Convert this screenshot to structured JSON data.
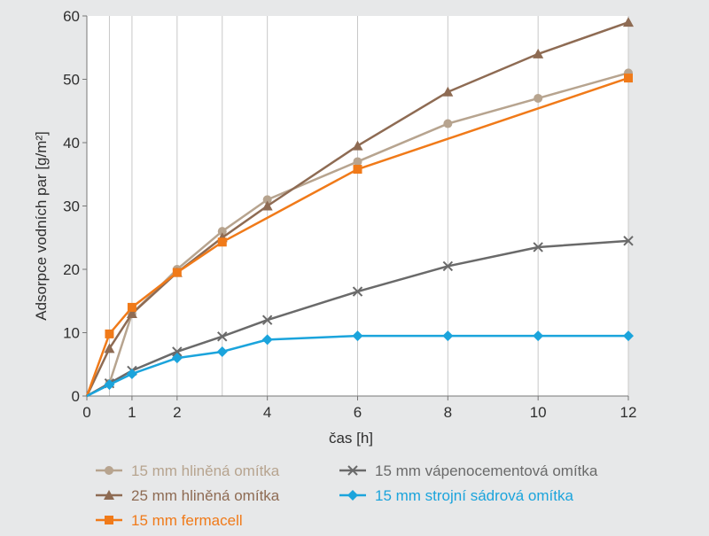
{
  "chart_data": {
    "type": "line",
    "title": "",
    "xlabel": "čas [h]",
    "ylabel": "Adsorpce vodních par [g/m²]",
    "xlim": [
      0,
      12
    ],
    "ylim": [
      0,
      60
    ],
    "x_ticks": [
      0,
      1,
      2,
      4,
      6,
      8,
      10,
      12
    ],
    "x_gridlines": [
      0.5,
      1,
      2,
      3,
      4,
      6,
      8,
      10,
      12
    ],
    "y_ticks": [
      0,
      10,
      20,
      30,
      40,
      50,
      60
    ],
    "grid": "vertical",
    "legend_position": "bottom",
    "series": [
      {
        "name": "15 mm hliněná omítka",
        "color": "#b7a48f",
        "marker": "circle",
        "points": [
          [
            0,
            0
          ],
          [
            0.5,
            2
          ],
          [
            1,
            13
          ],
          [
            2,
            20
          ],
          [
            3,
            26
          ],
          [
            4,
            31
          ],
          [
            6,
            37
          ],
          [
            8,
            43
          ],
          [
            10,
            47
          ],
          [
            12,
            51
          ]
        ]
      },
      {
        "name": "25 mm hliněná omítka",
        "color": "#8e6b53",
        "marker": "triangle",
        "points": [
          [
            0,
            0
          ],
          [
            0.5,
            7.5
          ],
          [
            1,
            13
          ],
          [
            2,
            19.5
          ],
          [
            3,
            25
          ],
          [
            4,
            30
          ],
          [
            6,
            39.5
          ],
          [
            8,
            48
          ],
          [
            10,
            54
          ],
          [
            12,
            59
          ]
        ]
      },
      {
        "name": "15 mm fermacell",
        "color": "#f07a19",
        "marker": "square",
        "points": [
          [
            0,
            0
          ],
          [
            0.5,
            9.8
          ],
          [
            1,
            14
          ],
          [
            2,
            19.5
          ],
          [
            3,
            24.3
          ],
          [
            6,
            35.8
          ],
          [
            12,
            50.2
          ]
        ]
      },
      {
        "name": "15 mm vápenocementová omítka",
        "color": "#6a6a6a",
        "marker": "x",
        "points": [
          [
            0,
            0
          ],
          [
            0.5,
            2
          ],
          [
            1,
            4
          ],
          [
            2,
            7
          ],
          [
            3,
            9.4
          ],
          [
            4,
            12
          ],
          [
            6,
            16.5
          ],
          [
            8,
            20.5
          ],
          [
            10,
            23.5
          ],
          [
            12,
            24.5
          ]
        ]
      },
      {
        "name": "15 mm strojní sádrová omítka",
        "color": "#1ba4dc",
        "marker": "diamond",
        "points": [
          [
            0,
            0
          ],
          [
            0.5,
            1.8
          ],
          [
            1,
            3.5
          ],
          [
            2,
            6
          ],
          [
            3,
            7
          ],
          [
            4,
            8.9
          ],
          [
            6,
            9.5
          ],
          [
            8,
            9.5
          ],
          [
            10,
            9.5
          ],
          [
            12,
            9.5
          ]
        ]
      }
    ],
    "legend_order": [
      0,
      3,
      1,
      4,
      2
    ]
  }
}
